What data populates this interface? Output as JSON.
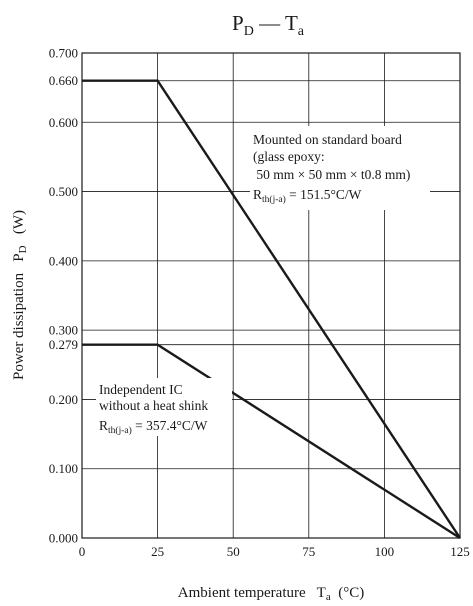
{
  "chart_data": {
    "type": "line",
    "title": {
      "main": "P",
      "sub": "D",
      "sep": " — ",
      "main2": "T",
      "sub2": "a"
    },
    "xlabel": {
      "text": "Ambient temperature",
      "sym": "T",
      "sub": "a",
      "unit": "(°C)"
    },
    "ylabel": {
      "text": "Power dissipation",
      "sym": "P",
      "sub": "D",
      "unit": "(W)"
    },
    "xlim": [
      0,
      125
    ],
    "ylim": [
      0,
      0.7
    ],
    "grid": true,
    "x_ticks": [
      0,
      25,
      50,
      75,
      100,
      125
    ],
    "x_tick_labels": [
      "0",
      "25",
      "50",
      "75",
      "100",
      "125"
    ],
    "y_ticks": [
      0.0,
      0.1,
      0.2,
      0.279,
      0.3,
      0.4,
      0.5,
      0.6,
      0.66,
      0.7
    ],
    "y_tick_labels": [
      "0.000",
      "0.100",
      "0.200",
      "0.279",
      "0.300",
      "0.400",
      "0.500",
      "0.600",
      "0.660",
      "0.700"
    ],
    "series": [
      {
        "x": [
          0,
          25,
          125
        ],
        "y": [
          0.66,
          0.66,
          0
        ]
      },
      {
        "x": [
          0,
          25,
          125
        ],
        "y": [
          0.279,
          0.279,
          0
        ]
      }
    ],
    "annotations": [
      {
        "lines": [
          "Mounted on standard board",
          "(glass epoxy:",
          " 50 mm × 50 mm × t0.8 mm)"
        ],
        "r_sym": "R",
        "r_sub": "th(j-a)",
        "r_val": " = 151.5°C/W"
      },
      {
        "lines": [
          "Independent IC",
          "without a heat shink"
        ],
        "r_sym": "R",
        "r_sub": "th(j-a)",
        "r_val": " = 357.4°C/W"
      }
    ]
  }
}
